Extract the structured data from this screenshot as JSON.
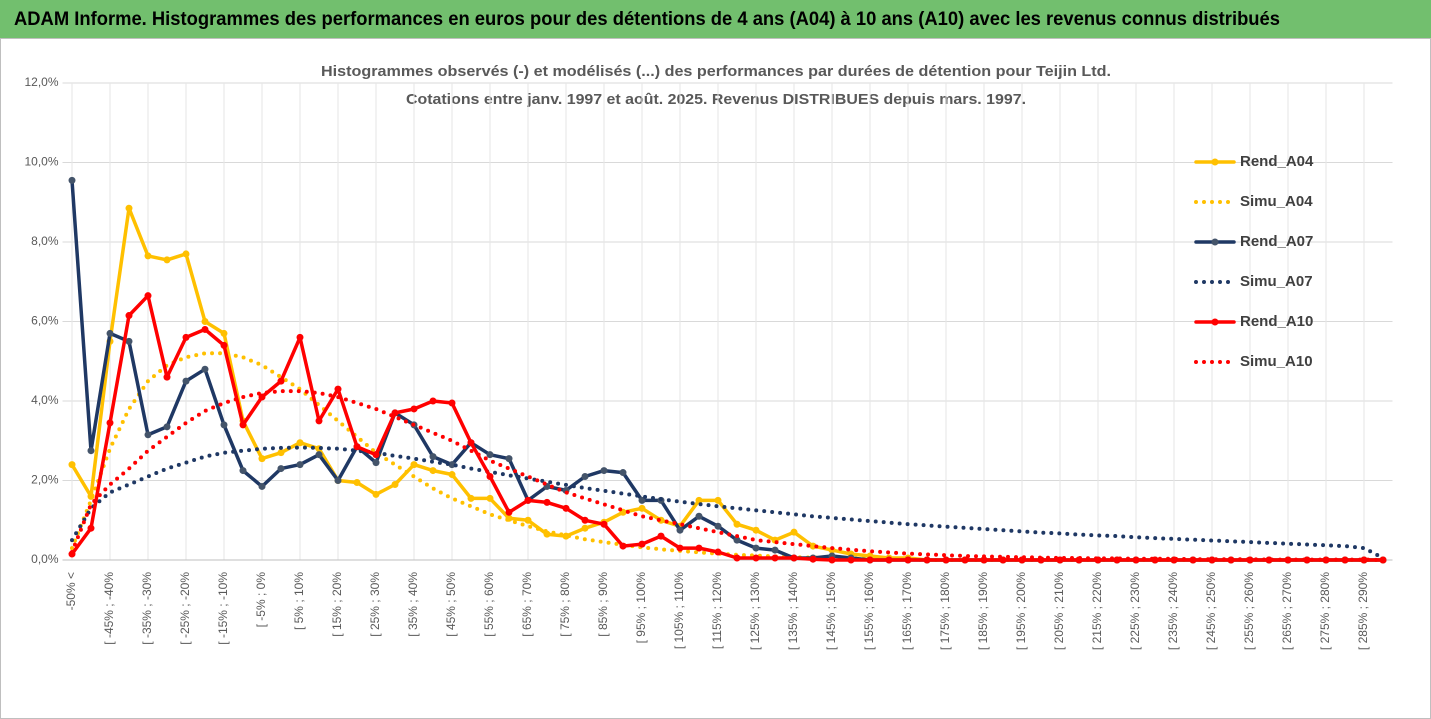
{
  "chart_data": {
    "type": "line",
    "title": "ADAM Informe. Histogrammes des performances en euros pour des détentions de 4 ans (A04) à 10 ans (A10) avec les revenus connus distribués",
    "subtitle": [
      "Histogrammes observés (-) et modélisés (...) des performances par durées de détention pour Teijin Ltd.",
      "Cotations entre janv. 1997 et août. 2025. Revenus DISTRIBUES depuis mars. 1997."
    ],
    "categories": [
      "-50% <",
      null,
      "[ -45% ; -40%",
      null,
      "[ -35% ; -30%",
      null,
      "[ -25% ; -20%",
      null,
      "[ -15% ; -10%",
      null,
      "[ -5% ; 0%",
      null,
      "[ 5% ; 10%",
      null,
      "[ 15% ; 20%",
      null,
      "[ 25% ; 30%",
      null,
      "[ 35% ; 40%",
      null,
      "[ 45% ; 50%",
      null,
      "[ 55% ; 60%",
      null,
      "[ 65% ; 70%",
      null,
      "[ 75% ; 80%",
      null,
      "[ 85% ; 90%",
      null,
      "[ 95% ; 100%",
      null,
      "[ 105% ; 110%",
      null,
      "[ 115% ; 120%",
      null,
      "[ 125% ; 130%",
      null,
      "[ 135% ; 140%",
      null,
      "[ 145% ; 150%",
      null,
      "[ 155% ; 160%",
      null,
      "[ 165% ; 170%",
      null,
      "[ 175% ; 180%",
      null,
      "[ 185% ; 190%",
      null,
      "[ 195% ; 200%",
      null,
      "[ 205% ; 210%",
      null,
      "[ 215% ; 220%",
      null,
      "[ 225% ; 230%",
      null,
      "[ 235% ; 240%",
      null,
      "[ 245% ; 250%",
      null,
      "[ 255% ; 260%",
      null,
      "[ 265% ; 270%",
      null,
      "[ 275% ; 280%",
      null,
      "[ 285% ; 290%",
      null
    ],
    "series": [
      {
        "name": "Rend_A04",
        "color": "#ffc000",
        "line_style": "solid",
        "markers": true,
        "values": [
          2.4,
          1.6,
          5.5,
          8.85,
          7.65,
          7.55,
          7.7,
          6.0,
          5.7,
          3.5,
          2.55,
          2.7,
          2.95,
          2.8,
          2.0,
          1.95,
          1.65,
          1.9,
          2.4,
          2.25,
          2.15,
          1.55,
          1.55,
          1.05,
          1.0,
          0.65,
          0.6,
          0.8,
          0.95,
          1.2,
          1.3,
          1.0,
          0.85,
          1.5,
          1.5,
          0.9,
          0.75,
          0.5,
          0.7,
          0.35,
          0.25,
          0.15,
          0.1,
          0.05,
          0.05,
          0,
          0,
          0,
          0,
          0,
          0,
          0,
          0,
          0,
          0,
          0,
          0,
          0,
          0,
          0,
          0,
          0,
          0,
          0,
          0,
          0,
          0,
          0,
          0,
          0
        ]
      },
      {
        "name": "Simu_A04",
        "color": "#ffc000",
        "line_style": "dotted",
        "markers": false,
        "values": [
          0.3,
          1.5,
          2.8,
          3.8,
          4.5,
          4.9,
          5.1,
          5.2,
          5.2,
          5.1,
          4.9,
          4.6,
          4.3,
          3.9,
          3.5,
          3.1,
          2.7,
          2.4,
          2.1,
          1.8,
          1.55,
          1.35,
          1.15,
          1.0,
          0.85,
          0.72,
          0.62,
          0.52,
          0.45,
          0.38,
          0.32,
          0.27,
          0.23,
          0.19,
          0.16,
          0.13,
          0.11,
          0.09,
          0.07,
          0.06,
          0.05,
          0.04,
          0.03,
          0.03,
          0.02,
          0,
          0,
          0,
          0,
          0,
          0,
          0,
          0,
          0,
          0,
          0,
          0,
          0,
          0,
          0,
          0,
          0,
          0,
          0,
          0,
          0,
          0,
          0,
          0,
          0
        ]
      },
      {
        "name": "Rend_A07",
        "color": "#1f3864",
        "marker_color": "#44546a",
        "line_style": "solid",
        "markers": true,
        "values": [
          9.55,
          2.75,
          5.7,
          5.5,
          3.15,
          3.35,
          4.5,
          4.8,
          3.4,
          2.25,
          1.85,
          2.3,
          2.4,
          2.65,
          2.0,
          2.85,
          2.45,
          3.7,
          3.4,
          2.6,
          2.4,
          2.95,
          2.65,
          2.55,
          1.5,
          1.85,
          1.75,
          2.1,
          2.25,
          2.2,
          1.5,
          1.5,
          0.75,
          1.1,
          0.85,
          0.5,
          0.3,
          0.25,
          0.05,
          0.05,
          0.1,
          0.05,
          0,
          0,
          0,
          0,
          0,
          0,
          0,
          0,
          0,
          0,
          0,
          0,
          0,
          0,
          0,
          0,
          0,
          0,
          0,
          0,
          0,
          0,
          0,
          0,
          0,
          0,
          0,
          0
        ]
      },
      {
        "name": "Simu_A07",
        "color": "#1f3864",
        "line_style": "dotted",
        "markers": false,
        "values": [
          0.5,
          1.3,
          1.7,
          1.9,
          2.1,
          2.3,
          2.45,
          2.6,
          2.7,
          2.75,
          2.8,
          2.82,
          2.83,
          2.82,
          2.8,
          2.75,
          2.7,
          2.62,
          2.55,
          2.47,
          2.4,
          2.3,
          2.22,
          2.13,
          2.05,
          1.97,
          1.89,
          1.81,
          1.74,
          1.67,
          1.6,
          1.53,
          1.47,
          1.41,
          1.35,
          1.3,
          1.25,
          1.2,
          1.15,
          1.1,
          1.06,
          1.02,
          0.98,
          0.94,
          0.9,
          0.87,
          0.84,
          0.81,
          0.78,
          0.75,
          0.72,
          0.69,
          0.67,
          0.64,
          0.62,
          0.6,
          0.57,
          0.55,
          0.53,
          0.51,
          0.49,
          0.47,
          0.45,
          0.43,
          0.41,
          0.39,
          0.37,
          0.35,
          0.3,
          0.05
        ]
      },
      {
        "name": "Rend_A10",
        "color": "#ff0000",
        "line_style": "solid",
        "markers": true,
        "values": [
          0.15,
          0.8,
          3.45,
          6.15,
          6.65,
          4.6,
          5.6,
          5.8,
          5.4,
          3.4,
          4.1,
          4.5,
          5.6,
          3.5,
          4.3,
          2.85,
          2.65,
          3.7,
          3.8,
          4.0,
          3.95,
          2.95,
          2.1,
          1.2,
          1.5,
          1.45,
          1.3,
          1.0,
          0.9,
          0.35,
          0.4,
          0.6,
          0.3,
          0.3,
          0.2,
          0.05,
          0.05,
          0.05,
          0.05,
          0.02,
          0,
          0,
          0,
          0,
          0,
          0,
          0,
          0,
          0,
          0,
          0,
          0,
          0,
          0,
          0,
          0,
          0,
          0,
          0,
          0,
          0,
          0,
          0,
          0,
          0,
          0,
          0,
          0,
          0,
          0
        ]
      },
      {
        "name": "Simu_A10",
        "color": "#ff0000",
        "line_style": "dotted",
        "markers": false,
        "values": [
          0.2,
          1.4,
          1.9,
          2.3,
          2.75,
          3.1,
          3.45,
          3.75,
          3.95,
          4.1,
          4.2,
          4.25,
          4.25,
          4.2,
          4.1,
          3.95,
          3.8,
          3.6,
          3.4,
          3.2,
          3.0,
          2.75,
          2.5,
          2.3,
          2.1,
          1.9,
          1.7,
          1.55,
          1.4,
          1.25,
          1.1,
          1.0,
          0.9,
          0.8,
          0.7,
          0.6,
          0.5,
          0.45,
          0.4,
          0.35,
          0.3,
          0.26,
          0.22,
          0.19,
          0.16,
          0.14,
          0.12,
          0.1,
          0.09,
          0.08,
          0.07,
          0.06,
          0.05,
          0.05,
          0.04,
          0.04,
          0.03,
          0.03,
          0.03,
          0.02,
          0.02,
          0.02,
          0.02,
          0.01,
          0.01,
          0.01,
          0.01,
          0.01,
          0.01,
          0
        ]
      }
    ],
    "ylim": [
      0,
      12
    ],
    "yticks": [
      {
        "value": 0,
        "label": "0,0%"
      },
      {
        "value": 2,
        "label": "2,0%"
      },
      {
        "value": 4,
        "label": "4,0%"
      },
      {
        "value": 6,
        "label": "6,0%"
      },
      {
        "value": 8,
        "label": "8,0%"
      },
      {
        "value": 10,
        "label": "10,0%"
      },
      {
        "value": 12,
        "label": "12,0%"
      }
    ],
    "grid": true,
    "legend": "right"
  }
}
